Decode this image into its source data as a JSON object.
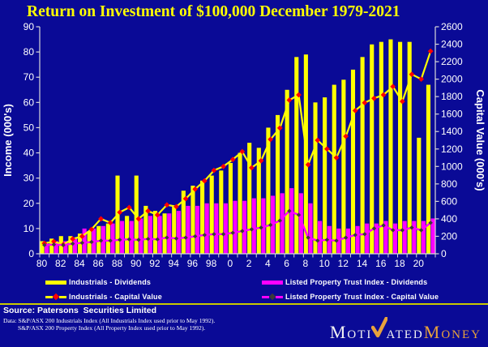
{
  "title": "Return on Investment of $100,000 December 1979-2021",
  "colors": {
    "background": "#0A0A96",
    "title": "#FFFF00",
    "industrials": "#FFFF00",
    "industrials_marker": "#FF0000",
    "lpt": "#FF00FF",
    "lpt_marker": "#3A3A3A",
    "axis_text": "#FFFFFF",
    "axis_line": "#D8D8D8",
    "divider": "#C9C900",
    "logo_gold": "#E8A23C",
    "logo_white": "#F2F2F2"
  },
  "chart_data": {
    "type": "bar+line combo",
    "title": "Return on Investment of $100,000 December 1979-2021",
    "x_years": [
      1980,
      1981,
      1982,
      1983,
      1984,
      1985,
      1986,
      1987,
      1988,
      1989,
      1990,
      1991,
      1992,
      1993,
      1994,
      1995,
      1996,
      1997,
      1998,
      1999,
      2000,
      2001,
      2002,
      2003,
      2004,
      2005,
      2006,
      2007,
      2008,
      2009,
      2010,
      2011,
      2012,
      2013,
      2014,
      2015,
      2016,
      2017,
      2018,
      2019,
      2020,
      2021
    ],
    "x_tick_labels": [
      "80",
      "82",
      "84",
      "86",
      "88",
      "90",
      "92",
      "94",
      "96",
      "98",
      "0",
      "2",
      "4",
      "6",
      "8",
      "10",
      "12",
      "14",
      "16",
      "18",
      "20"
    ],
    "left_axis": {
      "label": "Income (000's)",
      "min": 0,
      "max": 90,
      "step": 10
    },
    "right_axis": {
      "label": "Capital Value (000's)",
      "min": 0,
      "max": 2600,
      "step": 200
    },
    "grid": "off",
    "legend_position": "bottom",
    "series": [
      {
        "name": "Industrials - Dividends",
        "type": "bar",
        "axis": "left",
        "color": "#FFFF00",
        "values": [
          5,
          6,
          7,
          7,
          8,
          9,
          11,
          12,
          31,
          15,
          31,
          19,
          17,
          16,
          19,
          25,
          27,
          29,
          31,
          33,
          36,
          40,
          44,
          42,
          50,
          55,
          65,
          78,
          79,
          60,
          62,
          67,
          69,
          73,
          78,
          83,
          84,
          85,
          84,
          84,
          46,
          67
        ]
      },
      {
        "name": "Listed Property Trust Index - Dividends",
        "type": "bar",
        "axis": "left",
        "color": "#FF00FF",
        "values": [
          4,
          5,
          5,
          6,
          10,
          10,
          11,
          12,
          13,
          13,
          14,
          15,
          15,
          16,
          17,
          19,
          19,
          20,
          20,
          20,
          21,
          21,
          22,
          22,
          23,
          24,
          26,
          24,
          20,
          13,
          11,
          10,
          10,
          11,
          12,
          12,
          13,
          12,
          13,
          13,
          13,
          14
        ]
      },
      {
        "name": "Industrials - Capital Value",
        "type": "line",
        "axis": "right",
        "color": "#FFFF00",
        "marker_color": "#FF0000",
        "values": [
          120,
          140,
          105,
          170,
          200,
          280,
          400,
          355,
          475,
          530,
          400,
          490,
          445,
          560,
          540,
          630,
          740,
          835,
          955,
          1000,
          1080,
          1170,
          985,
          1065,
          1310,
          1440,
          1760,
          1820,
          1020,
          1300,
          1200,
          1100,
          1345,
          1640,
          1730,
          1780,
          1820,
          1915,
          1745,
          2055,
          2000,
          2320
        ]
      },
      {
        "name": "Listed Property Trust Index - Capital Value",
        "type": "line",
        "axis": "right",
        "color": "#FF00FF",
        "marker_color": "#3A3A3A",
        "values": [
          100,
          105,
          100,
          115,
          125,
          135,
          150,
          150,
          160,
          165,
          160,
          170,
          165,
          185,
          175,
          185,
          200,
          215,
          225,
          225,
          240,
          260,
          280,
          300,
          330,
          380,
          490,
          445,
          185,
          150,
          160,
          150,
          185,
          215,
          225,
          290,
          325,
          270,
          270,
          300,
          270,
          355
        ]
      }
    ]
  },
  "legend": [
    {
      "label": "Industrials - Dividends",
      "marker": "bar",
      "color": "#FFFF00"
    },
    {
      "label": "Industrials - Capital Value",
      "marker": "line",
      "color": "#FFFF00",
      "marker_color": "#FF0000"
    },
    {
      "label": "Listed Property Trust Index - Dividends",
      "marker": "bar",
      "color": "#FF00FF"
    },
    {
      "label": "Listed Property Trust Index - Capital Value",
      "marker": "line",
      "color": "#FF00FF",
      "marker_color": "#3A3A3A"
    }
  ],
  "footer": {
    "source": "Source: Patersons  Securities Limited",
    "data_line1": "Data: S&P/ASX 200 Industrials Index (All Industrials Index used prior to May 1992).",
    "data_line2": "S&P/ASX 200 Property Index (All Property Index used prior to May 1992)."
  },
  "logo": {
    "part1": "Moti",
    "part2": "ated",
    "part3": "Money"
  }
}
